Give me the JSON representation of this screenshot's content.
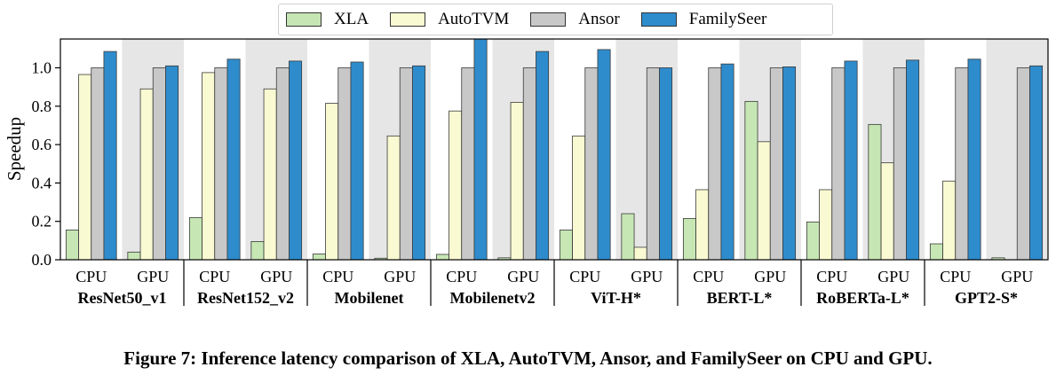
{
  "chart_data": {
    "type": "bar",
    "ylabel": "Speedup",
    "ylim": [
      0,
      1.15
    ],
    "yticks": [
      "0.0",
      "0.2",
      "0.4",
      "0.6",
      "0.8",
      "1.0"
    ],
    "groups": [
      "ResNet50_v1",
      "ResNet152_v2",
      "Mobilenet",
      "Mobilenetv2",
      "ViT-H*",
      "BERT-L*",
      "RoBERTa-L*",
      "GPT2-S*"
    ],
    "devices": [
      "CPU",
      "GPU"
    ],
    "series": [
      {
        "name": "XLA",
        "color": "#c6e6b4",
        "values": [
          0.155,
          0.04,
          0.22,
          0.095,
          0.03,
          0.008,
          0.028,
          0.01,
          0.155,
          0.24,
          0.215,
          0.825,
          0.197,
          0.705,
          0.083,
          0.01
        ]
      },
      {
        "name": "AutoTVM",
        "color": "#fafad2",
        "values": [
          0.965,
          0.89,
          0.975,
          0.89,
          0.815,
          0.645,
          0.775,
          0.82,
          0.645,
          0.065,
          0.365,
          0.615,
          0.365,
          0.505,
          0.41,
          0.0
        ]
      },
      {
        "name": "Ansor",
        "color": "#c8c8c8",
        "values": [
          1.0,
          1.0,
          1.0,
          1.0,
          1.0,
          1.0,
          1.0,
          1.0,
          1.0,
          1.0,
          1.0,
          1.0,
          1.0,
          1.0,
          1.0,
          1.0
        ]
      },
      {
        "name": "FamilySeer",
        "color": "#2e8ccc",
        "values": [
          1.085,
          1.01,
          1.045,
          1.035,
          1.03,
          1.01,
          1.16,
          1.085,
          1.095,
          1.0,
          1.02,
          1.005,
          1.035,
          1.04,
          1.045,
          1.01
        ]
      }
    ]
  },
  "caption": "Figure 7: Inference latency comparison of XLA, AutoTVM, Ansor, and FamilySeer on CPU and GPU."
}
